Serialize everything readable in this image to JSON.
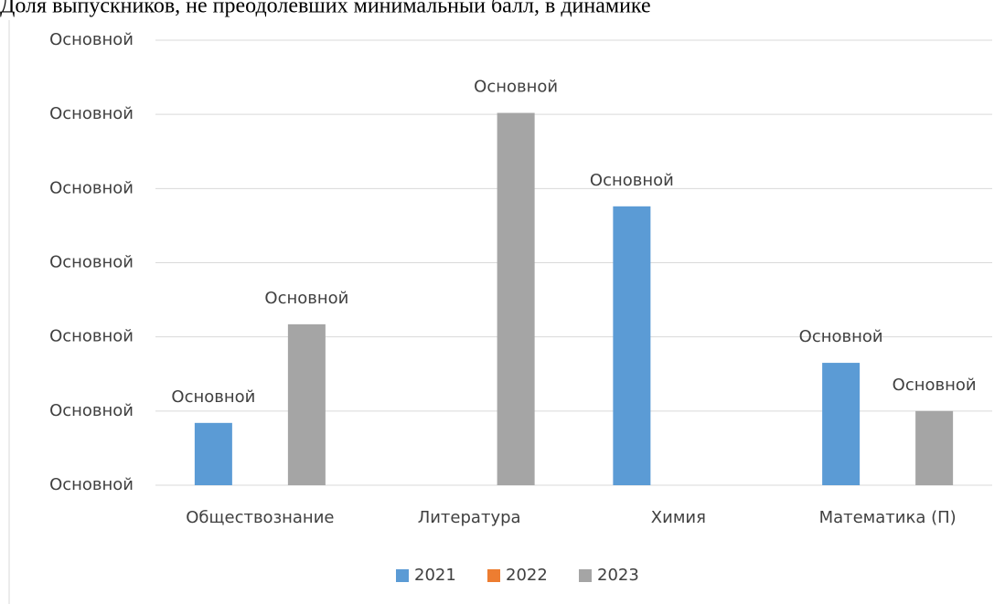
{
  "chart_data": {
    "type": "bar",
    "title": "Доля выпускников, не преодолевших минимальный балл, в динамике",
    "categories": [
      "Обществознание",
      "Литература",
      "Химия",
      "Математика (П)"
    ],
    "series": [
      {
        "name": "2021",
        "color": "#5b9bd5",
        "values": [
          0.84,
          null,
          3.76,
          1.65
        ],
        "value_labels": [
          "Основной",
          null,
          "Основной",
          "Основной"
        ]
      },
      {
        "name": "2022",
        "color": "#ed7d31",
        "values": [
          null,
          null,
          null,
          null
        ],
        "value_labels": [
          null,
          null,
          null,
          null
        ]
      },
      {
        "name": "2023",
        "color": "#a5a5a5",
        "values": [
          2.17,
          5.02,
          null,
          1.0
        ],
        "value_labels": [
          "Основной",
          "Основной",
          null,
          "Основной"
        ]
      }
    ],
    "ylim": [
      0,
      6
    ],
    "yticks": [
      {
        "value": 0,
        "label": "Основной"
      },
      {
        "value": 1,
        "label": "Основной"
      },
      {
        "value": 2,
        "label": "Основной"
      },
      {
        "value": 3,
        "label": "Основной"
      },
      {
        "value": 4,
        "label": "Основной"
      },
      {
        "value": 5,
        "label": "Основной"
      },
      {
        "value": 6,
        "label": "Основной"
      }
    ],
    "grid": true,
    "legend": "bottom"
  }
}
